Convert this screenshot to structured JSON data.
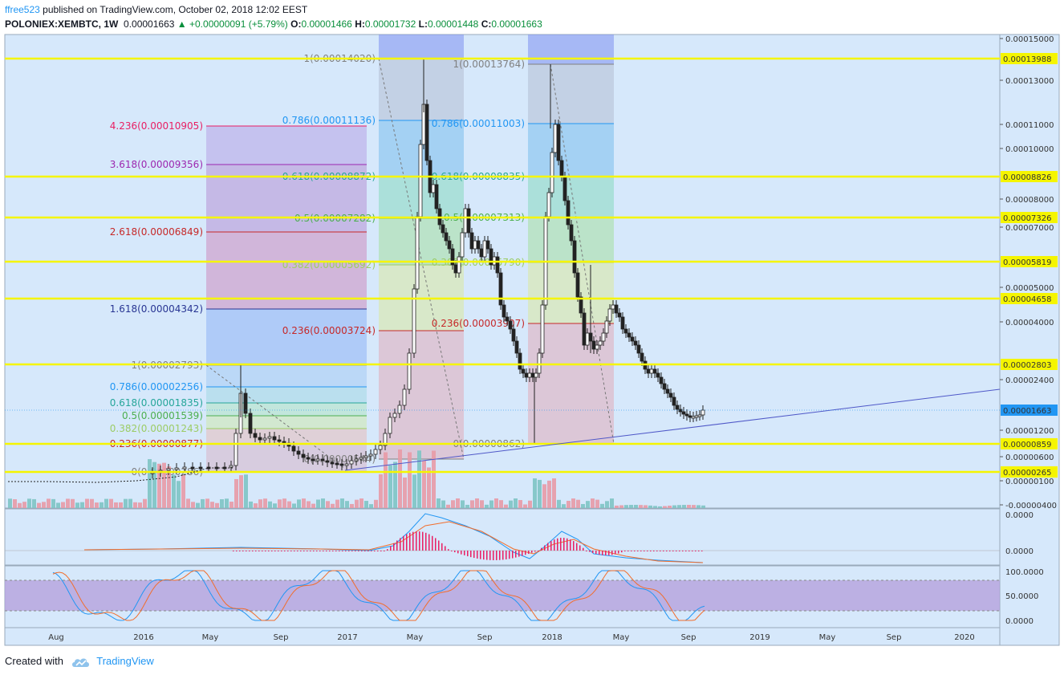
{
  "header": {
    "author": "ffree523",
    "published": "published on TradingView.com, October 02, 2018 12:02 EEST",
    "symbol": "POLONIEX:XEMBTC, 1W",
    "last": "0.00001663",
    "change": "+0.00000091 (+5.79%)",
    "open_label": "O:",
    "open": "0.00001466",
    "high_label": "H:",
    "high": "0.00001732",
    "low_label": "L:",
    "low": "0.00001448",
    "close_label": "C:",
    "close": "0.00001663"
  },
  "footer": {
    "created_with": "Created with",
    "brand": "TradingView"
  },
  "colors": {
    "pane_bg": "#d6e8fb",
    "up": "#26a69a",
    "down": "#ef5350",
    "candle_edge": "#222222",
    "yellow_line": "#f5f500",
    "trendline": "#4f58c8",
    "macd_fast": "#2196f3",
    "macd_slow": "#f26d2b",
    "macd_hist": "#e91e63",
    "stoch_band": "#b39ddb"
  },
  "chart_data": {
    "type": "candlestick",
    "time_axis": [
      "Aug",
      "2016",
      "May",
      "Sep",
      "2017",
      "May",
      "Sep",
      "2018",
      "May",
      "Sep",
      "2019",
      "May",
      "Sep",
      "2020"
    ],
    "price_axis": [
      "0.00015000",
      "0.00013000",
      "0.00011000",
      "0.00010000",
      "0.00008000",
      "0.00007000",
      "0.00005000",
      "0.00004000",
      "0.00002400",
      "0.00001200",
      "0.00000600",
      "0.00000100",
      "-0.00000400"
    ],
    "horizontal_levels": [
      "0.00013988",
      "0.00008826",
      "0.00007326",
      "0.00005819",
      "0.00004658",
      "0.00002803",
      "0.00000859",
      "0.00000265"
    ],
    "last_price": "0.00001663",
    "fib_extension_1": [
      {
        "label": "4.236(0.00010905)",
        "value": 0.00010905,
        "color": "#e91e63"
      },
      {
        "label": "3.618(0.00009356)",
        "value": 9.356e-05,
        "color": "#9c27b0"
      },
      {
        "label": "2.618(0.00006849)",
        "value": 6.849e-05,
        "color": "#c62828"
      },
      {
        "label": "1.618(0.00004342)",
        "value": 4.342e-05,
        "color": "#283593"
      },
      {
        "label": "1(0.00002793)",
        "value": 2.793e-05,
        "color": "#808080"
      },
      {
        "label": "0.786(0.00002256)",
        "value": 2.256e-05,
        "color": "#2196f3"
      },
      {
        "label": "0.618(0.00001835)",
        "value": 1.835e-05,
        "color": "#26a69a"
      },
      {
        "label": "0.5(0.00001539)",
        "value": 1.539e-05,
        "color": "#4caf50"
      },
      {
        "label": "0.382(0.00001243)",
        "value": 1.243e-05,
        "color": "#9ccc65"
      },
      {
        "label": "0.236(0.00000877)",
        "value": 8.77e-06,
        "color": "#c62828"
      },
      {
        "label": "0(0.00000286)",
        "value": 2.86e-06,
        "color": "#808080"
      }
    ],
    "fib_retracement_2": [
      {
        "label": "1(0.00014020)",
        "value": 0.0001402,
        "color": "#808080"
      },
      {
        "label": "0.786(0.00011136)",
        "value": 0.00011136,
        "color": "#2196f3"
      },
      {
        "label": "0.618(0.00008872)",
        "value": 8.872e-05,
        "color": "#26a69a"
      },
      {
        "label": "0.5(0.00007282)",
        "value": 7.282e-05,
        "color": "#4caf50"
      },
      {
        "label": "0.382(0.00005692)",
        "value": 5.692e-05,
        "color": "#9ccc65"
      },
      {
        "label": "0.236(0.00003724)",
        "value": 3.724e-05,
        "color": "#c62828"
      },
      {
        "label": "0(0.00000544)",
        "value": 5.44e-06,
        "color": "#808080"
      }
    ],
    "fib_retracement_3": [
      {
        "label": "1(0.00013764)",
        "value": 0.00013764,
        "color": "#808080"
      },
      {
        "label": "0.786(0.00011003)",
        "value": 0.00011003,
        "color": "#2196f3"
      },
      {
        "label": "0.618(0.00008835)",
        "value": 8.835e-05,
        "color": "#26a69a"
      },
      {
        "label": "0.5(0.00007313)",
        "value": 7.313e-05,
        "color": "#4caf50"
      },
      {
        "label": "0.382(0.00005790)",
        "value": 5.79e-05,
        "color": "#9ccc65"
      },
      {
        "label": "0.236(0.00003907)",
        "value": 3.907e-05,
        "color": "#c62828"
      },
      {
        "label": "0(0.00000862)",
        "value": 8.62e-06,
        "color": "#808080"
      }
    ],
    "macd_axis": [
      "0.0000",
      "0.0000"
    ],
    "stoch_axis": [
      "100.0000",
      "50.0000",
      "0.0000"
    ]
  }
}
